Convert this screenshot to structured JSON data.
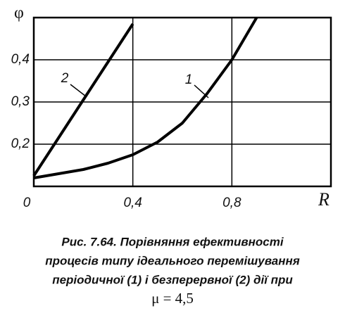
{
  "chart_data": {
    "type": "line",
    "x_label": "R",
    "y_label": "φ",
    "x": [
      0,
      0.1,
      0.2,
      0.3,
      0.4,
      0.5,
      0.6,
      0.7,
      0.8,
      0.9
    ],
    "series": [
      {
        "name": "1",
        "color": "#000000",
        "values": [
          0.12,
          0.13,
          0.14,
          0.155,
          0.175,
          0.205,
          0.25,
          0.32,
          0.4,
          0.5
        ]
      },
      {
        "name": "2",
        "color": "#000000",
        "values": [
          0.125,
          0.215,
          0.305,
          0.395,
          0.485,
          null,
          null,
          null,
          null,
          null
        ]
      }
    ],
    "xlim": [
      0,
      1.2
    ],
    "ylim": [
      0.1,
      0.5
    ],
    "xticks": [
      0,
      {
        "value": 0.4,
        "label": "0,4"
      },
      {
        "value": 0.8,
        "label": "0,8"
      }
    ],
    "yticks": [
      {
        "value": 0.2,
        "label": "0,2"
      },
      {
        "value": 0.3,
        "label": "0,3"
      },
      {
        "value": 0.4,
        "label": "0,4"
      }
    ],
    "grid": true,
    "caption": [
      "Рис. 7.64. Порівняння ефективності",
      "процесів типу ідеального перемішування",
      "періодичної (1) і безперервної (2) дії при",
      "μ = 4,5"
    ]
  }
}
